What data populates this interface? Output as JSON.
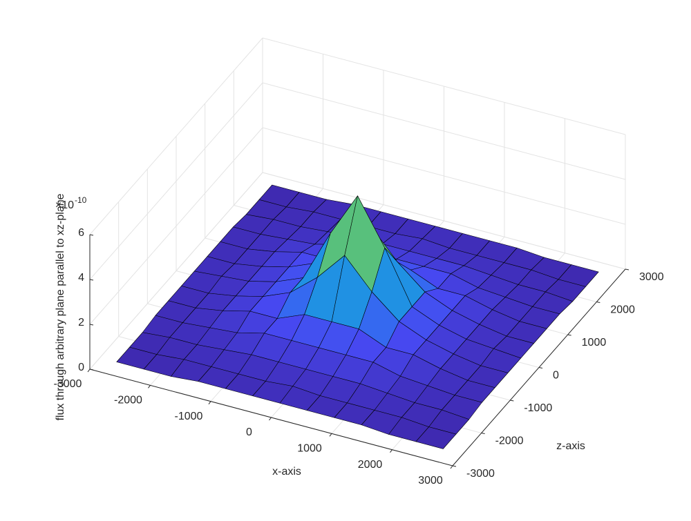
{
  "chart_data": {
    "type": "surface",
    "xlabel": "x-axis",
    "ylabel": "z-axis",
    "zlabel": "flux through arbitrary plane parallel to xz-plane",
    "zexponent_base": "×10",
    "zexponent_power": "-10",
    "colormap": "parula",
    "grid": true,
    "edge_color": "#000000",
    "xlim": [
      -3000,
      3000
    ],
    "ylim": [
      -3000,
      3000
    ],
    "zlim": [
      0,
      6
    ],
    "xticks": [
      -3000,
      -2000,
      -1000,
      0,
      1000,
      2000,
      3000
    ],
    "yticks": [
      -3000,
      -2000,
      -1000,
      0,
      1000,
      2000,
      3000
    ],
    "zticks": [
      0,
      2,
      4,
      6
    ],
    "x": [
      -2700,
      -2250,
      -1800,
      -1350,
      -900,
      -450,
      0,
      450,
      900,
      1350,
      1800,
      2250,
      2700
    ],
    "y": [
      -2700,
      -2250,
      -1800,
      -1350,
      -900,
      -450,
      0,
      450,
      900,
      1350,
      1800,
      2250,
      2700
    ],
    "values": [
      [
        0.1,
        0.1,
        0.1,
        0.2,
        0.2,
        0.2,
        0.2,
        0.2,
        0.2,
        0.2,
        0.1,
        0.1,
        0.1
      ],
      [
        0.1,
        0.1,
        0.2,
        0.2,
        0.2,
        0.2,
        0.3,
        0.2,
        0.2,
        0.2,
        0.2,
        0.1,
        0.1
      ],
      [
        0.1,
        0.2,
        0.2,
        0.3,
        0.4,
        0.4,
        0.4,
        0.4,
        0.4,
        0.3,
        0.2,
        0.2,
        0.1
      ],
      [
        0.2,
        0.2,
        0.3,
        0.4,
        0.7,
        0.7,
        0.7,
        0.7,
        0.7,
        0.4,
        0.3,
        0.2,
        0.2
      ],
      [
        0.2,
        0.2,
        0.4,
        0.7,
        0.7,
        1.2,
        1.2,
        1.2,
        0.7,
        0.7,
        0.4,
        0.2,
        0.2
      ],
      [
        0.2,
        0.2,
        0.4,
        0.7,
        1.2,
        2.2,
        3.5,
        2.2,
        1.2,
        0.7,
        0.4,
        0.2,
        0.2
      ],
      [
        0.2,
        0.3,
        0.4,
        0.7,
        1.2,
        3.5,
        5.5,
        3.5,
        1.2,
        0.7,
        0.4,
        0.3,
        0.2
      ],
      [
        0.2,
        0.2,
        0.4,
        0.7,
        1.2,
        2.2,
        3.5,
        2.2,
        1.2,
        0.7,
        0.4,
        0.2,
        0.2
      ],
      [
        0.2,
        0.2,
        0.4,
        0.7,
        0.7,
        1.2,
        1.2,
        1.2,
        0.7,
        0.7,
        0.4,
        0.2,
        0.2
      ],
      [
        0.2,
        0.2,
        0.3,
        0.4,
        0.7,
        0.7,
        0.7,
        0.7,
        0.7,
        0.4,
        0.3,
        0.2,
        0.2
      ],
      [
        0.1,
        0.2,
        0.2,
        0.3,
        0.4,
        0.4,
        0.4,
        0.4,
        0.4,
        0.3,
        0.2,
        0.2,
        0.1
      ],
      [
        0.1,
        0.1,
        0.2,
        0.2,
        0.2,
        0.2,
        0.3,
        0.2,
        0.2,
        0.2,
        0.2,
        0.1,
        0.1
      ],
      [
        0.1,
        0.1,
        0.1,
        0.2,
        0.2,
        0.2,
        0.2,
        0.2,
        0.2,
        0.2,
        0.1,
        0.1,
        0.1
      ]
    ]
  }
}
